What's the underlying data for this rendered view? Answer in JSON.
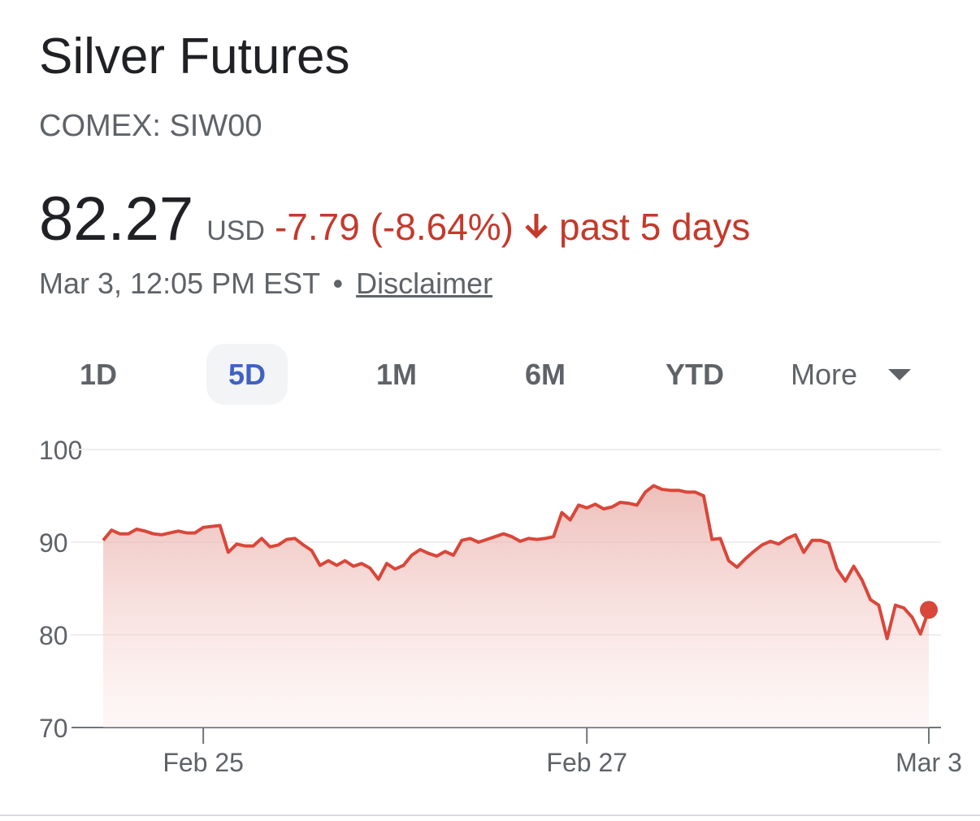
{
  "header": {
    "title": "Silver Futures",
    "exchange": "COMEX: SIW00",
    "price": "82.27",
    "currency": "USD",
    "change": "-7.79 (-8.64%)",
    "period": "past 5 days",
    "timestamp": "Mar 3, 12:05 PM EST",
    "separator": "•",
    "disclaimer": "Disclaimer"
  },
  "tabs": [
    "1D",
    "5D",
    "1M",
    "6M",
    "YTD",
    "More"
  ],
  "selected_tab": "5D",
  "chart_data": {
    "type": "line",
    "color": "#d9473a",
    "categories": [
      null,
      null,
      null,
      null,
      null,
      null,
      null,
      null,
      null,
      null,
      null,
      null,
      "Feb 25",
      null,
      null,
      null,
      null,
      null,
      null,
      null,
      null,
      null,
      null,
      null,
      null,
      null,
      null,
      null,
      null,
      null,
      null,
      null,
      null,
      null,
      null,
      null,
      null,
      null,
      null,
      null,
      null,
      null,
      null,
      null,
      null,
      null,
      null,
      null,
      null,
      null,
      null,
      null,
      null,
      null,
      null,
      null,
      null,
      null,
      "Feb 27",
      null,
      null,
      null,
      null,
      null,
      null,
      null,
      null,
      null,
      null,
      null,
      null,
      null,
      null,
      null,
      null,
      null,
      null,
      null,
      null,
      null,
      null,
      null,
      null,
      null,
      null,
      null,
      null,
      null,
      null,
      null,
      null,
      null,
      null,
      null,
      null,
      null,
      null,
      null,
      null,
      "Mar 3"
    ],
    "values": [
      90.2,
      91.3,
      90.9,
      90.9,
      91.4,
      91.2,
      90.9,
      90.8,
      91.0,
      91.2,
      91.0,
      91.0,
      91.6,
      91.7,
      91.8,
      88.9,
      89.8,
      89.6,
      89.6,
      90.4,
      89.5,
      89.7,
      90.3,
      90.4,
      89.7,
      89.1,
      87.5,
      88.0,
      87.5,
      88.0,
      87.4,
      87.7,
      87.2,
      86.0,
      87.7,
      87.1,
      87.5,
      88.6,
      89.2,
      88.8,
      88.5,
      89.0,
      88.6,
      90.2,
      90.4,
      90.0,
      90.3,
      90.6,
      90.9,
      90.6,
      90.1,
      90.4,
      90.3,
      90.4,
      90.6,
      93.2,
      92.4,
      94.0,
      93.7,
      94.1,
      93.6,
      93.8,
      94.3,
      94.2,
      94.0,
      95.4,
      96.1,
      95.7,
      95.6,
      95.6,
      95.4,
      95.4,
      95.0,
      90.3,
      90.4,
      88.0,
      87.3,
      88.2,
      89.0,
      89.7,
      90.1,
      89.8,
      90.4,
      90.8,
      88.9,
      90.2,
      90.2,
      89.9,
      87.1,
      85.8,
      87.4,
      85.9,
      83.8,
      83.2,
      79.6,
      83.2,
      82.9,
      81.9,
      80.1,
      82.7
    ],
    "ylim": [
      70,
      100
    ],
    "yticks": [
      70,
      80,
      90,
      100
    ],
    "grid": true
  }
}
